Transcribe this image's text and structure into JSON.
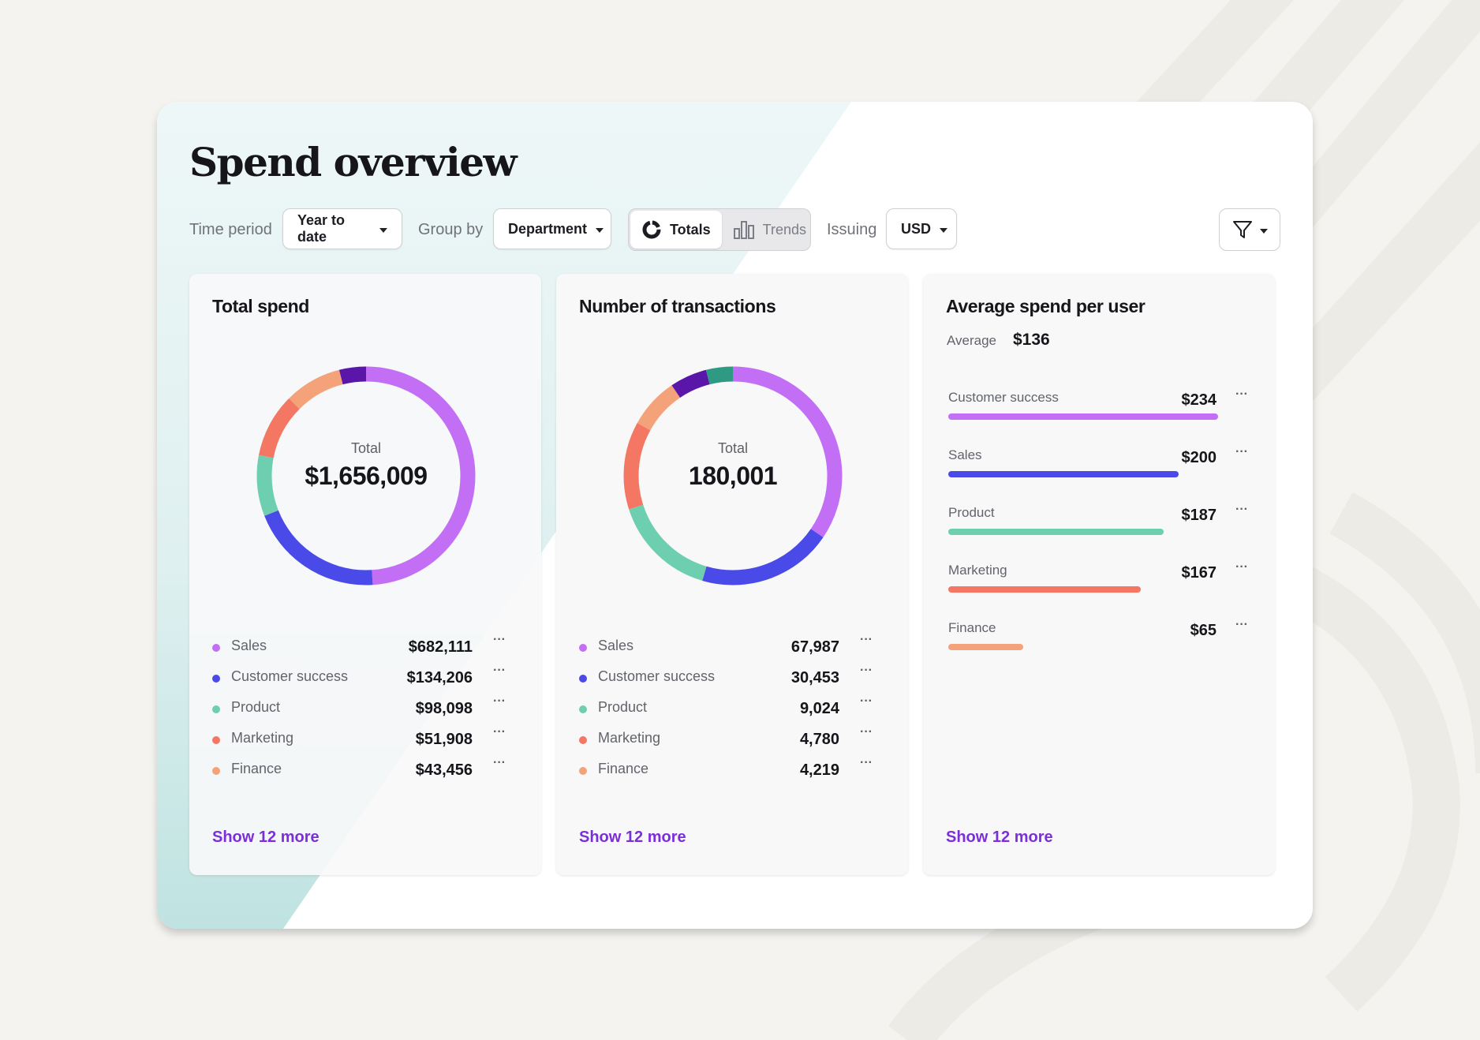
{
  "page": {
    "title": "Spend overview"
  },
  "toolbar": {
    "time_period_label": "Time period",
    "time_period_value": "Year to date",
    "group_by_label": "Group by",
    "group_by_value": "Department",
    "view_toggle": {
      "totals": "Totals",
      "trends": "Trends",
      "selected": "Totals"
    },
    "issuing_label": "Issuing",
    "issuing_value": "USD",
    "filter_icon": "filter-icon"
  },
  "colors": {
    "Sales": "#c36ff5",
    "Customer success": "#4a4ae8",
    "Product": "#6dcfb0",
    "Marketing": "#f47764",
    "Finance": "#f4a27a",
    "other_purple": "#5a16a8",
    "other_teal": "#2e9a83",
    "link": "#7b2fd9"
  },
  "cards": {
    "total_spend": {
      "title": "Total spend",
      "center_label": "Total",
      "center_value": "$1,656,009",
      "rows": [
        {
          "label": "Sales",
          "value": "$682,111"
        },
        {
          "label": "Customer success",
          "value": "$134,206"
        },
        {
          "label": "Product",
          "value": "$98,098"
        },
        {
          "label": "Marketing",
          "value": "$51,908"
        },
        {
          "label": "Finance",
          "value": "$43,456"
        }
      ],
      "more_icon": "ellipsis-icon",
      "show_more": "Show 12 more",
      "donut_segments": [
        {
          "color": "#c36ff5",
          "fraction": 0.49
        },
        {
          "color": "#4a4ae8",
          "fraction": 0.2
        },
        {
          "color": "#6dcfb0",
          "fraction": 0.09
        },
        {
          "color": "#f47764",
          "fraction": 0.095
        },
        {
          "color": "#f4a27a",
          "fraction": 0.085
        },
        {
          "color": "#5a16a8",
          "fraction": 0.04
        }
      ]
    },
    "transactions": {
      "title": "Number of transactions",
      "center_label": "Total",
      "center_value": "180,001",
      "rows": [
        {
          "label": "Sales",
          "value": "67,987"
        },
        {
          "label": "Customer success",
          "value": "30,453"
        },
        {
          "label": "Product",
          "value": "9,024"
        },
        {
          "label": "Marketing",
          "value": "4,780"
        },
        {
          "label": "Finance",
          "value": "4,219"
        }
      ],
      "more_icon": "ellipsis-icon",
      "show_more": "Show 12 more",
      "donut_segments": [
        {
          "color": "#c36ff5",
          "fraction": 0.345
        },
        {
          "color": "#4a4ae8",
          "fraction": 0.2
        },
        {
          "color": "#6dcfb0",
          "fraction": 0.155
        },
        {
          "color": "#f47764",
          "fraction": 0.13
        },
        {
          "color": "#f4a27a",
          "fraction": 0.075
        },
        {
          "color": "#5a16a8",
          "fraction": 0.055
        },
        {
          "color": "#2e9a83",
          "fraction": 0.04
        }
      ]
    },
    "avg_spend": {
      "title": "Average spend per user",
      "average_label": "Average",
      "average_value": "$136",
      "rows": [
        {
          "label": "Customer success",
          "value": "$234",
          "amount": 234,
          "color": "#c36ff5"
        },
        {
          "label": "Sales",
          "value": "$200",
          "amount": 200,
          "color": "#4a4ae8"
        },
        {
          "label": "Product",
          "value": "$187",
          "amount": 187,
          "color": "#6dcfb0"
        },
        {
          "label": "Marketing",
          "value": "$167",
          "amount": 167,
          "color": "#f47764"
        },
        {
          "label": "Finance",
          "value": "$65",
          "amount": 65,
          "color": "#f4a27a"
        }
      ],
      "more_icon": "ellipsis-icon",
      "show_more": "Show 12 more"
    }
  }
}
